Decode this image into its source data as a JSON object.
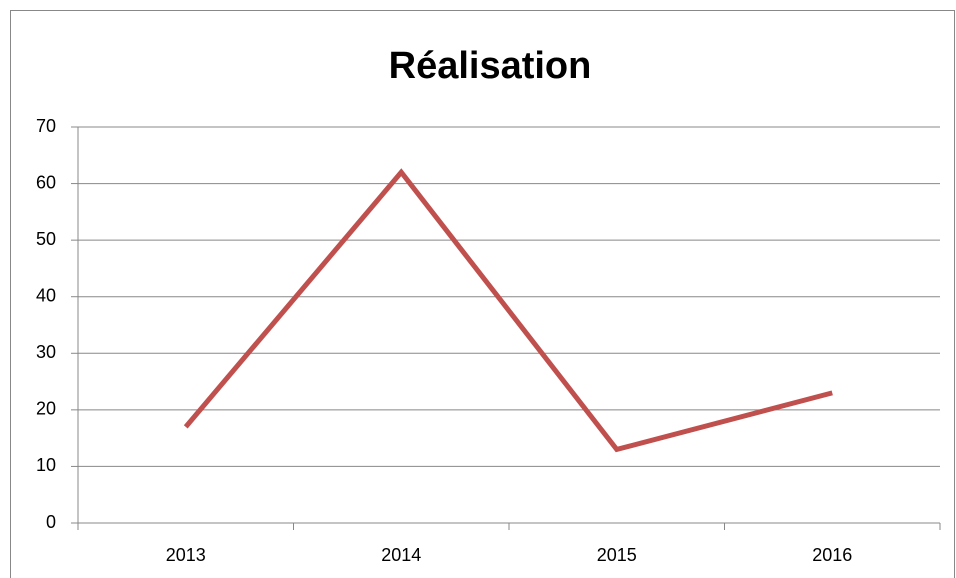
{
  "chart_data": {
    "type": "line",
    "title": "Réalisation",
    "categories": [
      "2013",
      "2014",
      "2015",
      "2016"
    ],
    "series": [
      {
        "name": "Réalisation",
        "color": "#c0504d",
        "values": [
          17,
          62,
          13,
          23
        ]
      }
    ],
    "ylim": [
      0,
      70
    ],
    "yticks": [
      0,
      10,
      20,
      30,
      40,
      50,
      60,
      70
    ],
    "grid": true
  }
}
